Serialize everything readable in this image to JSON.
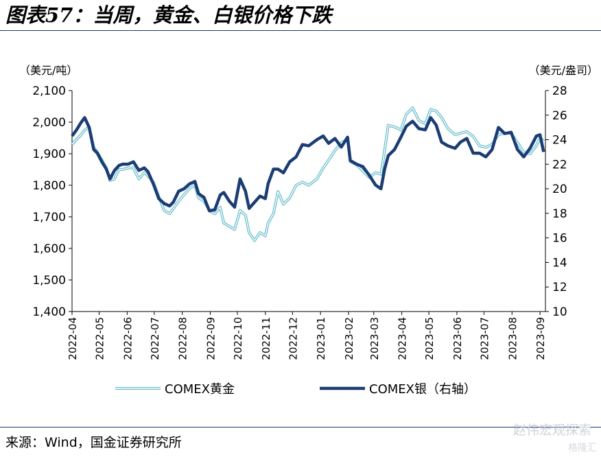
{
  "header": {
    "title": "图表57：当周，黄金、白银价格下跌"
  },
  "footer": {
    "source": "来源：Wind，国金证券研究所"
  },
  "watermark": {
    "text": "赵伟宏观探索",
    "sub": "格隆汇"
  },
  "chart_data": {
    "type": "line",
    "left_unit": "（美元/吨）",
    "right_unit": "（美元/盎司）",
    "y_left": {
      "range": [
        1400,
        2100
      ],
      "ticks": [
        "1,400",
        "1,500",
        "1,600",
        "1,700",
        "1,800",
        "1,900",
        "2,000",
        "2,100"
      ]
    },
    "y_right": {
      "range": [
        10,
        28
      ],
      "ticks": [
        "10",
        "12",
        "14",
        "16",
        "18",
        "20",
        "22",
        "24",
        "26",
        "28"
      ]
    },
    "x_ticks": [
      "2022-04",
      "2022-05",
      "2022-06",
      "2022-07",
      "2022-08",
      "2022-09",
      "2022-10",
      "2022-11",
      "2022-12",
      "2023-01",
      "2023-02",
      "2023-03",
      "2023-04",
      "2023-05",
      "2023-06",
      "2023-07",
      "2023-08",
      "2023-09"
    ],
    "colors": {
      "gold": "#6bbfce",
      "silver": "#1b3d74",
      "axis": "#000000"
    },
    "series": [
      {
        "name": "COMEX黄金",
        "axis": "left",
        "x": [
          "2022-04-01",
          "2022-04-06",
          "2022-04-11",
          "2022-04-15",
          "2022-04-20",
          "2022-04-25",
          "2022-04-29",
          "2022-05-04",
          "2022-05-09",
          "2022-05-13",
          "2022-05-18",
          "2022-05-23",
          "2022-05-27",
          "2022-06-02",
          "2022-06-08",
          "2022-06-14",
          "2022-06-20",
          "2022-06-24",
          "2022-06-30",
          "2022-07-06",
          "2022-07-12",
          "2022-07-18",
          "2022-07-22",
          "2022-07-28",
          "2022-08-03",
          "2022-08-09",
          "2022-08-15",
          "2022-08-19",
          "2022-08-25",
          "2022-08-31",
          "2022-09-06",
          "2022-09-12",
          "2022-09-16",
          "2022-09-22",
          "2022-09-28",
          "2022-10-04",
          "2022-10-10",
          "2022-10-14",
          "2022-10-20",
          "2022-10-26",
          "2022-11-01",
          "2022-11-04",
          "2022-11-10",
          "2022-11-15",
          "2022-11-21",
          "2022-11-28",
          "2022-12-05",
          "2022-12-12",
          "2022-12-19",
          "2022-12-28",
          "2023-01-04",
          "2023-01-10",
          "2023-01-17",
          "2023-01-24",
          "2023-01-31",
          "2023-02-03",
          "2023-02-10",
          "2023-02-17",
          "2023-02-24",
          "2023-03-03",
          "2023-03-09",
          "2023-03-13",
          "2023-03-17",
          "2023-03-24",
          "2023-03-31",
          "2023-04-06",
          "2023-04-13",
          "2023-04-20",
          "2023-04-27",
          "2023-05-03",
          "2023-05-09",
          "2023-05-15",
          "2023-05-22",
          "2023-05-30",
          "2023-06-05",
          "2023-06-12",
          "2023-06-19",
          "2023-06-26",
          "2023-07-03",
          "2023-07-10",
          "2023-07-17",
          "2023-07-24",
          "2023-07-31",
          "2023-08-07",
          "2023-08-14",
          "2023-08-21",
          "2023-08-28",
          "2023-09-01",
          "2023-09-05"
        ],
        "y": [
          1930,
          1945,
          1960,
          1975,
          1985,
          1920,
          1905,
          1880,
          1855,
          1815,
          1820,
          1850,
          1850,
          1855,
          1855,
          1820,
          1840,
          1830,
          1810,
          1765,
          1720,
          1710,
          1725,
          1750,
          1770,
          1790,
          1800,
          1760,
          1750,
          1720,
          1710,
          1730,
          1680,
          1670,
          1660,
          1720,
          1705,
          1650,
          1625,
          1650,
          1640,
          1680,
          1710,
          1780,
          1740,
          1760,
          1800,
          1810,
          1800,
          1820,
          1855,
          1880,
          1910,
          1935,
          1945,
          1875,
          1865,
          1845,
          1825,
          1840,
          1835,
          1910,
          1990,
          1985,
          1975,
          2025,
          2045,
          2005,
          1995,
          2040,
          2035,
          2015,
          1980,
          1960,
          1965,
          1970,
          1955,
          1925,
          1920,
          1930,
          1960,
          1965,
          1965,
          1935,
          1905,
          1900,
          1925,
          1950,
          1940
        ]
      },
      {
        "name": "COMEX银（右轴）",
        "axis": "right",
        "x": [
          "2022-04-01",
          "2022-04-06",
          "2022-04-11",
          "2022-04-15",
          "2022-04-20",
          "2022-04-25",
          "2022-04-29",
          "2022-05-04",
          "2022-05-09",
          "2022-05-13",
          "2022-05-18",
          "2022-05-23",
          "2022-05-27",
          "2022-06-02",
          "2022-06-08",
          "2022-06-14",
          "2022-06-20",
          "2022-06-24",
          "2022-06-30",
          "2022-07-06",
          "2022-07-12",
          "2022-07-18",
          "2022-07-22",
          "2022-07-28",
          "2022-08-03",
          "2022-08-09",
          "2022-08-15",
          "2022-08-19",
          "2022-08-25",
          "2022-08-31",
          "2022-09-06",
          "2022-09-12",
          "2022-09-16",
          "2022-09-22",
          "2022-09-28",
          "2022-10-04",
          "2022-10-10",
          "2022-10-14",
          "2022-10-20",
          "2022-10-26",
          "2022-11-01",
          "2022-11-04",
          "2022-11-10",
          "2022-11-15",
          "2022-11-21",
          "2022-11-28",
          "2022-12-05",
          "2022-12-12",
          "2022-12-19",
          "2022-12-28",
          "2023-01-04",
          "2023-01-10",
          "2023-01-17",
          "2023-01-24",
          "2023-01-31",
          "2023-02-03",
          "2023-02-10",
          "2023-02-17",
          "2023-02-24",
          "2023-03-03",
          "2023-03-09",
          "2023-03-13",
          "2023-03-17",
          "2023-03-24",
          "2023-03-31",
          "2023-04-06",
          "2023-04-13",
          "2023-04-20",
          "2023-04-27",
          "2023-05-03",
          "2023-05-09",
          "2023-05-15",
          "2023-05-22",
          "2023-05-30",
          "2023-06-05",
          "2023-06-12",
          "2023-06-19",
          "2023-06-26",
          "2023-07-03",
          "2023-07-10",
          "2023-07-17",
          "2023-07-24",
          "2023-07-31",
          "2023-08-07",
          "2023-08-14",
          "2023-08-21",
          "2023-08-28",
          "2023-09-01",
          "2023-09-05"
        ],
        "y": [
          24.3,
          24.8,
          25.4,
          25.8,
          25.0,
          23.2,
          22.9,
          22.2,
          21.6,
          20.8,
          21.5,
          21.9,
          22.0,
          22.0,
          22.2,
          21.5,
          21.7,
          21.4,
          20.4,
          19.2,
          18.8,
          18.6,
          18.9,
          19.8,
          20.0,
          20.4,
          20.6,
          19.6,
          19.3,
          18.2,
          18.3,
          19.5,
          19.7,
          19.0,
          18.5,
          20.8,
          19.8,
          18.4,
          18.9,
          19.4,
          19.2,
          20.4,
          21.6,
          21.6,
          21.3,
          22.2,
          22.6,
          23.6,
          23.5,
          24.0,
          24.3,
          23.7,
          24.1,
          23.4,
          24.2,
          22.3,
          22.0,
          21.8,
          21.1,
          20.3,
          20.0,
          21.6,
          22.7,
          23.2,
          24.2,
          25.1,
          25.5,
          24.9,
          24.8,
          25.8,
          25.2,
          23.8,
          23.5,
          23.3,
          23.8,
          24.1,
          22.9,
          22.9,
          22.6,
          23.2,
          25.0,
          24.5,
          24.6,
          23.2,
          22.6,
          23.3,
          24.3,
          24.4,
          23.0
        ]
      }
    ]
  }
}
